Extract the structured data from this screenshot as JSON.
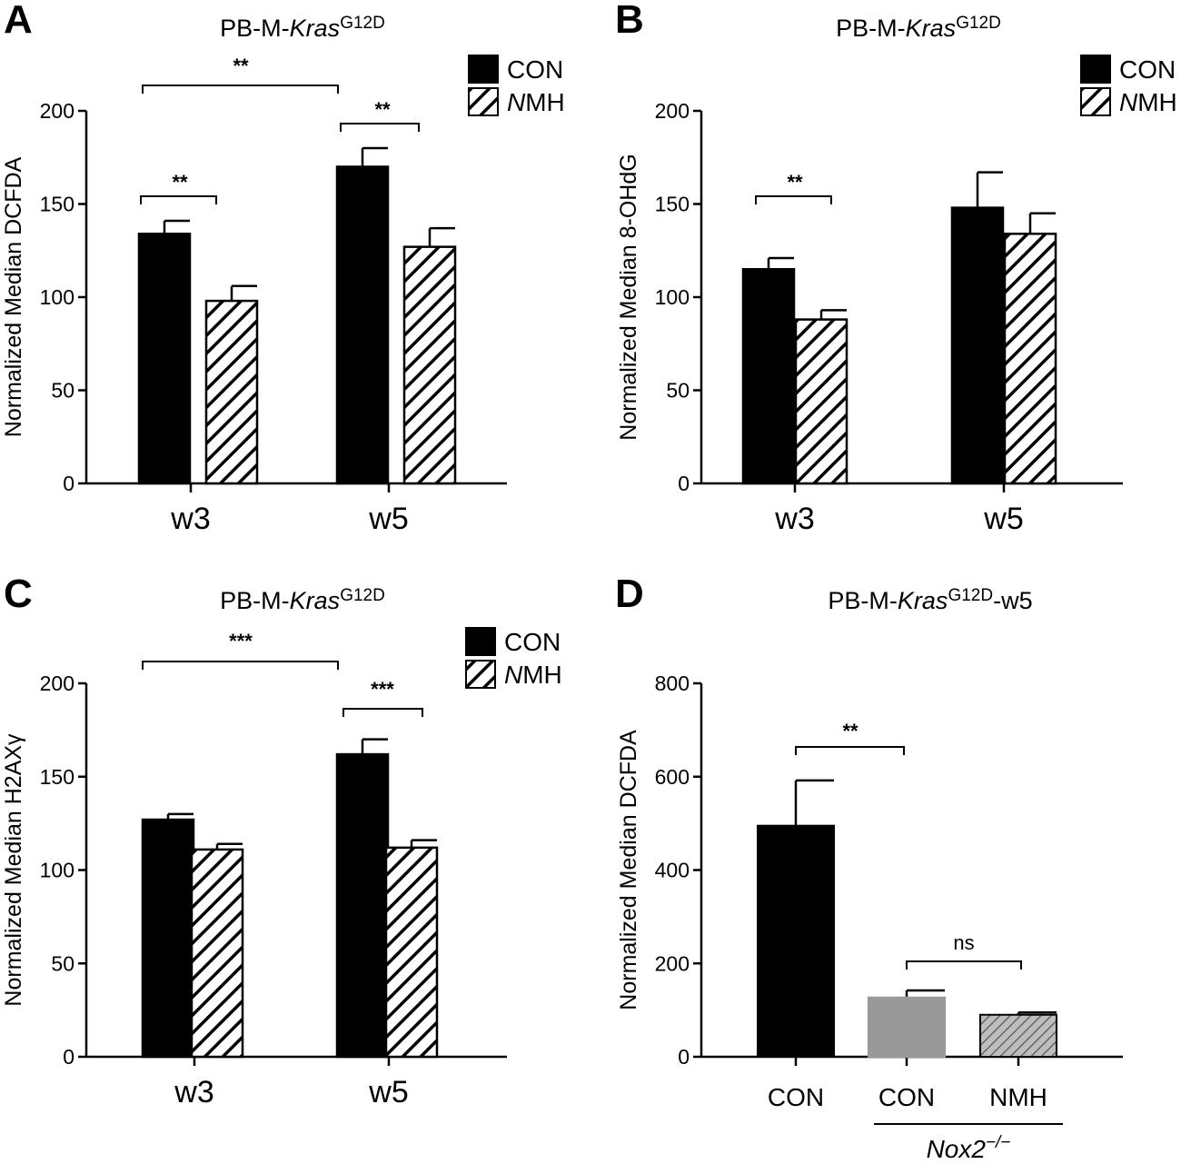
{
  "chart_data": [
    {
      "panel": "A",
      "type": "bar",
      "title_prefix": "PB-M-",
      "title_italic": "Kras",
      "title_sup": "G12D",
      "title_suffix": "",
      "ylabel": "Normalized Median DCFDA",
      "ylim": [
        0,
        200
      ],
      "yticks": [
        "0",
        "50",
        "100",
        "150",
        "200"
      ],
      "categories": [
        "w3",
        "w5"
      ],
      "legend": [
        {
          "label": "CON",
          "pattern": "solid"
        },
        {
          "italic": "N",
          "rest": "MH",
          "pattern": "hatch"
        }
      ],
      "series": [
        {
          "name": "CON",
          "values": [
            134,
            170
          ],
          "errors": [
            7,
            10
          ],
          "fill": "#000000"
        },
        {
          "name": "NMH",
          "values": [
            98,
            127
          ],
          "errors": [
            8,
            10
          ],
          "fill": "hatch"
        }
      ],
      "significance": [
        {
          "label": "**",
          "between": [
            "w3 CON",
            "w5 CON"
          ]
        },
        {
          "label": "**",
          "between": [
            "w3 CON",
            "w3 NMH"
          ]
        },
        {
          "label": "**",
          "between": [
            "w5 CON",
            "w5 NMH"
          ]
        }
      ]
    },
    {
      "panel": "B",
      "type": "bar",
      "title_prefix": "PB-M-",
      "title_italic": "Kras",
      "title_sup": "G12D",
      "title_suffix": "",
      "ylabel": "Normalized Median 8-OHdG",
      "ylim": [
        0,
        200
      ],
      "yticks": [
        "0",
        "50",
        "100",
        "150",
        "200"
      ],
      "categories": [
        "w3",
        "w5"
      ],
      "legend": [
        {
          "label": "CON",
          "pattern": "solid"
        },
        {
          "italic": "N",
          "rest": "MH",
          "pattern": "hatch"
        }
      ],
      "series": [
        {
          "name": "CON",
          "values": [
            115,
            148
          ],
          "errors": [
            6,
            19
          ],
          "fill": "#000000"
        },
        {
          "name": "NMH",
          "values": [
            88,
            134
          ],
          "errors": [
            5,
            11
          ],
          "fill": "hatch"
        }
      ],
      "significance": [
        {
          "label": "**",
          "between": [
            "w3 CON",
            "w3 NMH"
          ]
        }
      ]
    },
    {
      "panel": "C",
      "type": "bar",
      "title_prefix": "PB-M-",
      "title_italic": "Kras",
      "title_sup": "G12D",
      "title_suffix": "",
      "ylabel": "Normalized Median H2AXγ",
      "ylim": [
        0,
        200
      ],
      "yticks": [
        "0",
        "50",
        "100",
        "150",
        "200"
      ],
      "categories": [
        "w3",
        "w5"
      ],
      "legend": [
        {
          "label": "CON",
          "pattern": "solid"
        },
        {
          "italic": "N",
          "rest": "MH",
          "pattern": "hatch"
        }
      ],
      "series": [
        {
          "name": "CON",
          "values": [
            127,
            162
          ],
          "errors": [
            3,
            8
          ],
          "fill": "#000000"
        },
        {
          "name": "NMH",
          "values": [
            111,
            112
          ],
          "errors": [
            3,
            4
          ],
          "fill": "hatch"
        }
      ],
      "significance": [
        {
          "label": "***",
          "between": [
            "w3 CON",
            "w5 CON"
          ]
        },
        {
          "label": "***",
          "between": [
            "w5 CON",
            "w5 NMH"
          ]
        }
      ]
    },
    {
      "panel": "D",
      "type": "bar",
      "title_prefix": "PB-M-",
      "title_italic": "Kras",
      "title_sup": "G12D",
      "title_suffix": "-w5",
      "ylabel": "Normalized Median DCFDA",
      "ylim": [
        0,
        800
      ],
      "yticks": [
        "0",
        "200",
        "400",
        "600",
        "800"
      ],
      "categories": [
        "CON",
        "CON",
        "NMH"
      ],
      "group_label_italic": "Nox2",
      "group_label_sup": "−/−",
      "series": [
        {
          "name": "DCFDA",
          "values": [
            495,
            127,
            90
          ],
          "errors": [
            97,
            15,
            5
          ],
          "fills": [
            "#000000",
            "#999999",
            "hatch-grey"
          ]
        }
      ],
      "significance": [
        {
          "label": "**",
          "between": [
            "CON",
            "Nox2 CON"
          ]
        },
        {
          "label": "ns",
          "between": [
            "Nox2 CON",
            "Nox2 NMH"
          ]
        }
      ]
    }
  ],
  "colors": {
    "solid": "#000000",
    "grey": "#999999",
    "hatch_grey_bg": "#bdbdbd"
  }
}
